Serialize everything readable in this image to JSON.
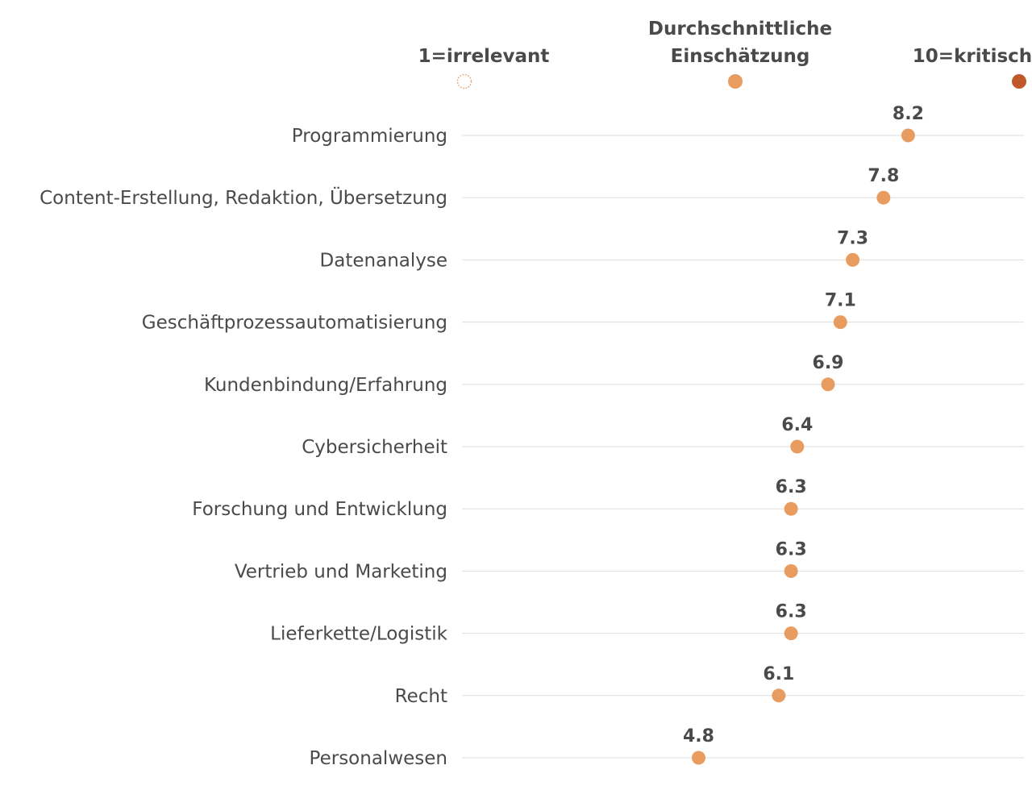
{
  "chart_data": {
    "type": "scatter",
    "title": "",
    "xlabel": "",
    "ylabel": "",
    "xlim": [
      1,
      10
    ],
    "grid": false,
    "legend_placement": "top",
    "legend": [
      {
        "label": "1=irrelevant",
        "value": 1,
        "marker": "hollow-dotted",
        "color": "#e89c5f"
      },
      {
        "label": "Durchschnittliche Einschätzung",
        "lines": [
          "Durchschnittliche",
          "Einschätzung"
        ],
        "value": null,
        "marker": "filled",
        "color": "#e89c5f"
      },
      {
        "label": "10=kritisch",
        "value": 10,
        "marker": "filled",
        "color": "#c0592a"
      }
    ],
    "categories": [
      "Programmierung",
      "Content-Erstellung, Redaktion, Übersetzung",
      "Datenanalyse",
      "Geschäftprozessautomatisierung",
      "Kundenbindung/Erfahrung",
      "Cybersicherheit",
      "Forschung und Entwicklung",
      "Vertrieb und Marketing",
      "Lieferkette/Logistik",
      "Recht",
      "Personalwesen"
    ],
    "values": [
      8.2,
      7.8,
      7.3,
      7.1,
      6.9,
      6.4,
      6.3,
      6.3,
      6.3,
      6.1,
      4.8
    ],
    "value_labels": [
      "8.2",
      "7.8",
      "7.3",
      "7.1",
      "6.9",
      "6.4",
      "6.3",
      "6.3",
      "6.3",
      "6.1",
      "4.8"
    ],
    "colors": {
      "point": "#e89c5f",
      "critical": "#c0592a",
      "line": "#dddddd",
      "text": "#4a4a4a"
    }
  }
}
